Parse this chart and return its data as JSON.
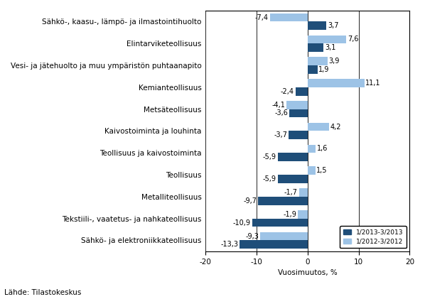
{
  "categories": [
    "Sähkö-, kaasu-, lämpö- ja ilmastointihuolto",
    "Elintarviketeollisuus",
    "Vesi- ja jätehuolto ja muu ympäristön puhtaanapito",
    "Kemianteollisuus",
    "Metsäteollisuus",
    "Kaivostoiminta ja louhinta",
    "Teollisuus ja kaivostoiminta",
    "Teollisuus",
    "Metalliteollisuus",
    "Tekstiili-, vaatetus- ja nahkateollisuus",
    "Sähkö- ja elektroniikkateollisuus"
  ],
  "series1_values": [
    3.7,
    3.1,
    1.9,
    -2.4,
    -3.6,
    -3.7,
    -5.9,
    -5.9,
    -9.7,
    -10.9,
    -13.3
  ],
  "series2_values": [
    -7.4,
    7.6,
    3.9,
    11.1,
    -4.1,
    4.2,
    1.6,
    1.5,
    -1.7,
    -1.9,
    -9.3
  ],
  "series1_label": "1/2013-3/2013",
  "series2_label": "1/2012-3/2012",
  "color1": "#1F4E79",
  "color2": "#9DC3E6",
  "xlabel": "Vuosimuutos, %",
  "xlim": [
    -20,
    20
  ],
  "xticks": [
    -20,
    -10,
    0,
    10,
    20
  ],
  "source_text": "Lähde: Tilastokeskus",
  "bar_height": 0.38,
  "label_fontsize": 7.0,
  "tick_fontsize": 7.5,
  "cat_fontsize": 7.5
}
